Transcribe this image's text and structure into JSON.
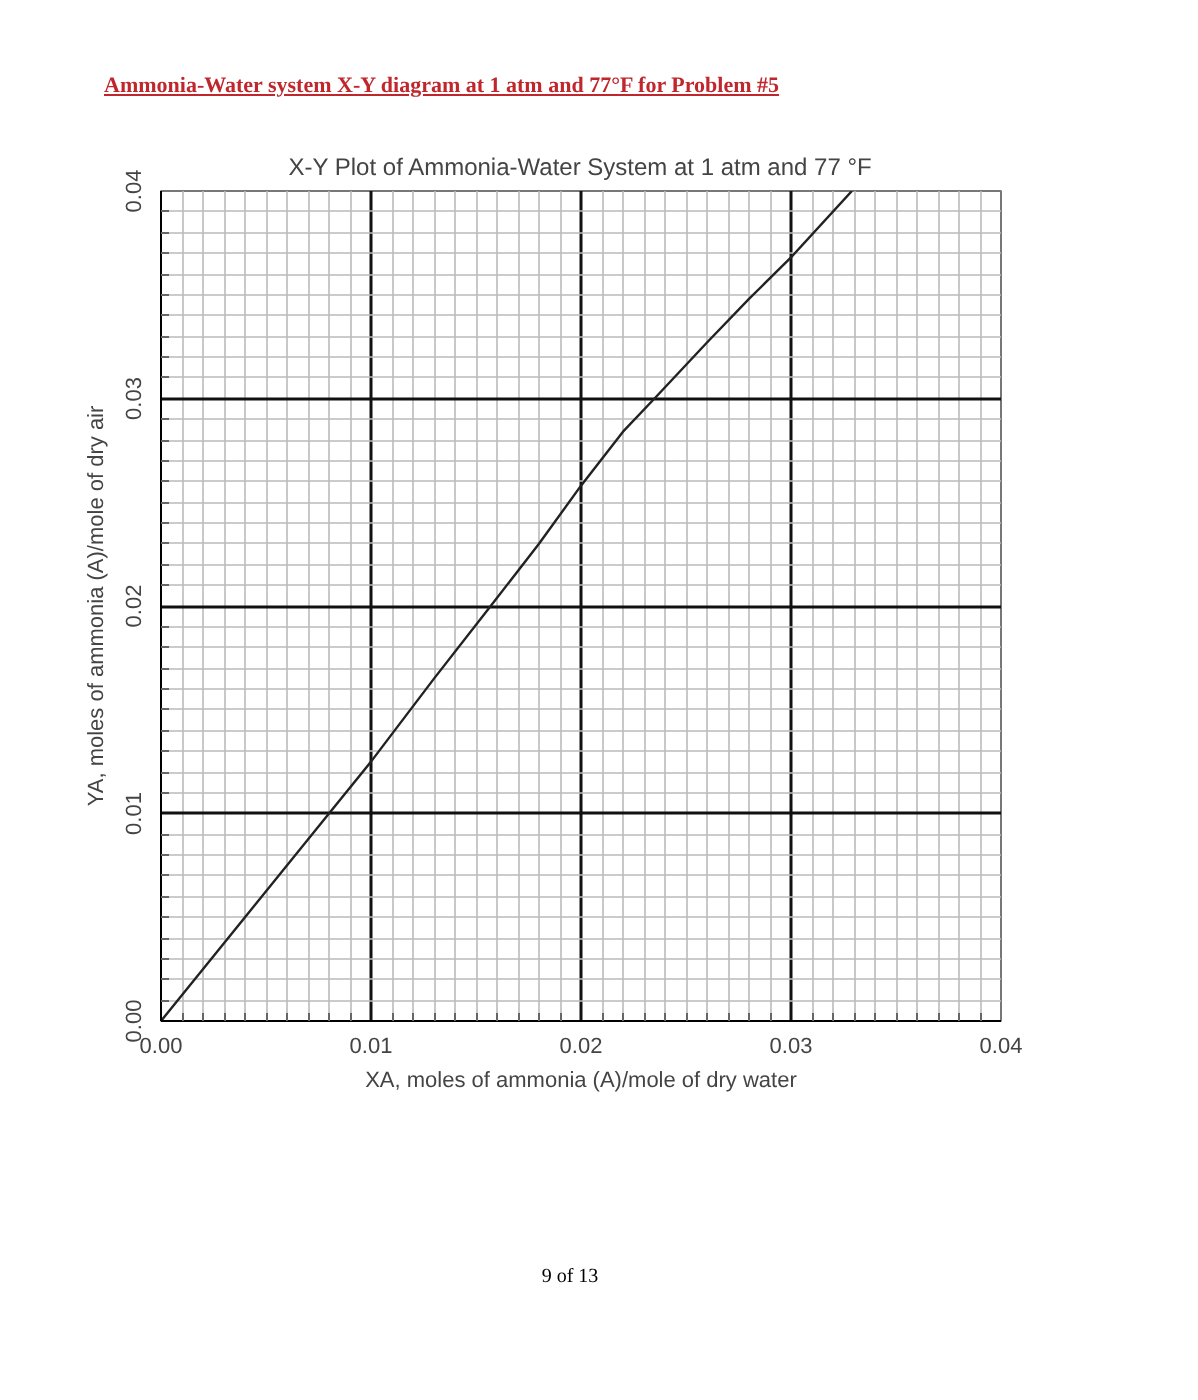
{
  "chart_data": {
    "type": "line",
    "title": "X-Y Plot of Ammonia-Water System at 1 atm and 77 °F",
    "xlabel": "XA, moles of ammonia (A)/mole of dry water",
    "ylabel": "YA, moles of ammonia (A)/mole of dry air",
    "annotations": [
      "Ammonia-Water system X-Y diagram at 1 atm and 77°F for Problem #5",
      "9 of 13"
    ],
    "x": [
      0,
      0.004,
      0.008,
      0.01,
      0.013,
      0.0157,
      0.018,
      0.02,
      0.022,
      0.0235,
      0.026,
      0.028,
      0.03,
      0.0329
    ],
    "series": [
      {
        "color": "#222222",
        "values": [
          0,
          0.005,
          0.01,
          0.0125,
          0.0165,
          0.02,
          0.023,
          0.0258,
          0.0284,
          0.03,
          0.0327,
          0.0348,
          0.0368,
          0.04
        ]
      }
    ],
    "xlim": [
      0,
      0.04
    ],
    "ylim": [
      0,
      0.04
    ],
    "xticks": [
      {
        "value": 0,
        "label": "0.00"
      },
      0.01,
      0.02,
      0.03,
      0.04
    ],
    "yticks": [
      {
        "value": 0,
        "label": "0.00"
      },
      0.01,
      0.02,
      0.03,
      0.04
    ],
    "grid": true,
    "marker": "none",
    "line_style": "solid"
  }
}
